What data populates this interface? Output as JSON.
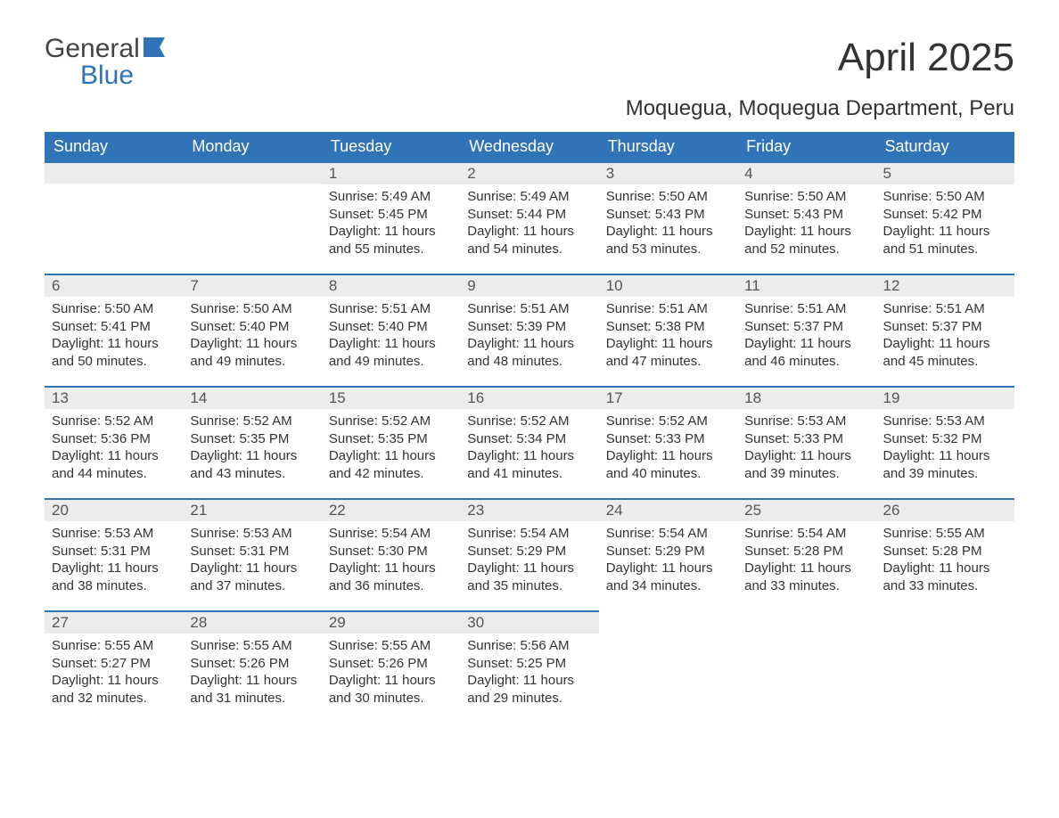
{
  "logo": {
    "word1": "General",
    "word2": "Blue"
  },
  "title": "April 2025",
  "subtitle": "Moquegua, Moquegua Department, Peru",
  "colors": {
    "header_bg": "#3073b7",
    "header_text": "#ffffff",
    "day_strip_bg": "#ececec",
    "day_border": "#3073b7",
    "body_text": "#333333",
    "logo_gray": "#444444",
    "logo_blue": "#3073b7"
  },
  "fontsizes": {
    "title": 44,
    "subtitle": 24,
    "weekday": 18,
    "daynum": 17,
    "body": 15,
    "logo": 30
  },
  "weekdays": [
    "Sunday",
    "Monday",
    "Tuesday",
    "Wednesday",
    "Thursday",
    "Friday",
    "Saturday"
  ],
  "weeks": [
    [
      null,
      null,
      {
        "n": "1",
        "sunrise": "5:49 AM",
        "sunset": "5:45 PM",
        "daylight": "11 hours and 55 minutes."
      },
      {
        "n": "2",
        "sunrise": "5:49 AM",
        "sunset": "5:44 PM",
        "daylight": "11 hours and 54 minutes."
      },
      {
        "n": "3",
        "sunrise": "5:50 AM",
        "sunset": "5:43 PM",
        "daylight": "11 hours and 53 minutes."
      },
      {
        "n": "4",
        "sunrise": "5:50 AM",
        "sunset": "5:43 PM",
        "daylight": "11 hours and 52 minutes."
      },
      {
        "n": "5",
        "sunrise": "5:50 AM",
        "sunset": "5:42 PM",
        "daylight": "11 hours and 51 minutes."
      }
    ],
    [
      {
        "n": "6",
        "sunrise": "5:50 AM",
        "sunset": "5:41 PM",
        "daylight": "11 hours and 50 minutes."
      },
      {
        "n": "7",
        "sunrise": "5:50 AM",
        "sunset": "5:40 PM",
        "daylight": "11 hours and 49 minutes."
      },
      {
        "n": "8",
        "sunrise": "5:51 AM",
        "sunset": "5:40 PM",
        "daylight": "11 hours and 49 minutes."
      },
      {
        "n": "9",
        "sunrise": "5:51 AM",
        "sunset": "5:39 PM",
        "daylight": "11 hours and 48 minutes."
      },
      {
        "n": "10",
        "sunrise": "5:51 AM",
        "sunset": "5:38 PM",
        "daylight": "11 hours and 47 minutes."
      },
      {
        "n": "11",
        "sunrise": "5:51 AM",
        "sunset": "5:37 PM",
        "daylight": "11 hours and 46 minutes."
      },
      {
        "n": "12",
        "sunrise": "5:51 AM",
        "sunset": "5:37 PM",
        "daylight": "11 hours and 45 minutes."
      }
    ],
    [
      {
        "n": "13",
        "sunrise": "5:52 AM",
        "sunset": "5:36 PM",
        "daylight": "11 hours and 44 minutes."
      },
      {
        "n": "14",
        "sunrise": "5:52 AM",
        "sunset": "5:35 PM",
        "daylight": "11 hours and 43 minutes."
      },
      {
        "n": "15",
        "sunrise": "5:52 AM",
        "sunset": "5:35 PM",
        "daylight": "11 hours and 42 minutes."
      },
      {
        "n": "16",
        "sunrise": "5:52 AM",
        "sunset": "5:34 PM",
        "daylight": "11 hours and 41 minutes."
      },
      {
        "n": "17",
        "sunrise": "5:52 AM",
        "sunset": "5:33 PM",
        "daylight": "11 hours and 40 minutes."
      },
      {
        "n": "18",
        "sunrise": "5:53 AM",
        "sunset": "5:33 PM",
        "daylight": "11 hours and 39 minutes."
      },
      {
        "n": "19",
        "sunrise": "5:53 AM",
        "sunset": "5:32 PM",
        "daylight": "11 hours and 39 minutes."
      }
    ],
    [
      {
        "n": "20",
        "sunrise": "5:53 AM",
        "sunset": "5:31 PM",
        "daylight": "11 hours and 38 minutes."
      },
      {
        "n": "21",
        "sunrise": "5:53 AM",
        "sunset": "5:31 PM",
        "daylight": "11 hours and 37 minutes."
      },
      {
        "n": "22",
        "sunrise": "5:54 AM",
        "sunset": "5:30 PM",
        "daylight": "11 hours and 36 minutes."
      },
      {
        "n": "23",
        "sunrise": "5:54 AM",
        "sunset": "5:29 PM",
        "daylight": "11 hours and 35 minutes."
      },
      {
        "n": "24",
        "sunrise": "5:54 AM",
        "sunset": "5:29 PM",
        "daylight": "11 hours and 34 minutes."
      },
      {
        "n": "25",
        "sunrise": "5:54 AM",
        "sunset": "5:28 PM",
        "daylight": "11 hours and 33 minutes."
      },
      {
        "n": "26",
        "sunrise": "5:55 AM",
        "sunset": "5:28 PM",
        "daylight": "11 hours and 33 minutes."
      }
    ],
    [
      {
        "n": "27",
        "sunrise": "5:55 AM",
        "sunset": "5:27 PM",
        "daylight": "11 hours and 32 minutes."
      },
      {
        "n": "28",
        "sunrise": "5:55 AM",
        "sunset": "5:26 PM",
        "daylight": "11 hours and 31 minutes."
      },
      {
        "n": "29",
        "sunrise": "5:55 AM",
        "sunset": "5:26 PM",
        "daylight": "11 hours and 30 minutes."
      },
      {
        "n": "30",
        "sunrise": "5:56 AM",
        "sunset": "5:25 PM",
        "daylight": "11 hours and 29 minutes."
      },
      null,
      null,
      null
    ]
  ],
  "labels": {
    "sunrise": "Sunrise: ",
    "sunset": "Sunset: ",
    "daylight": "Daylight: "
  }
}
